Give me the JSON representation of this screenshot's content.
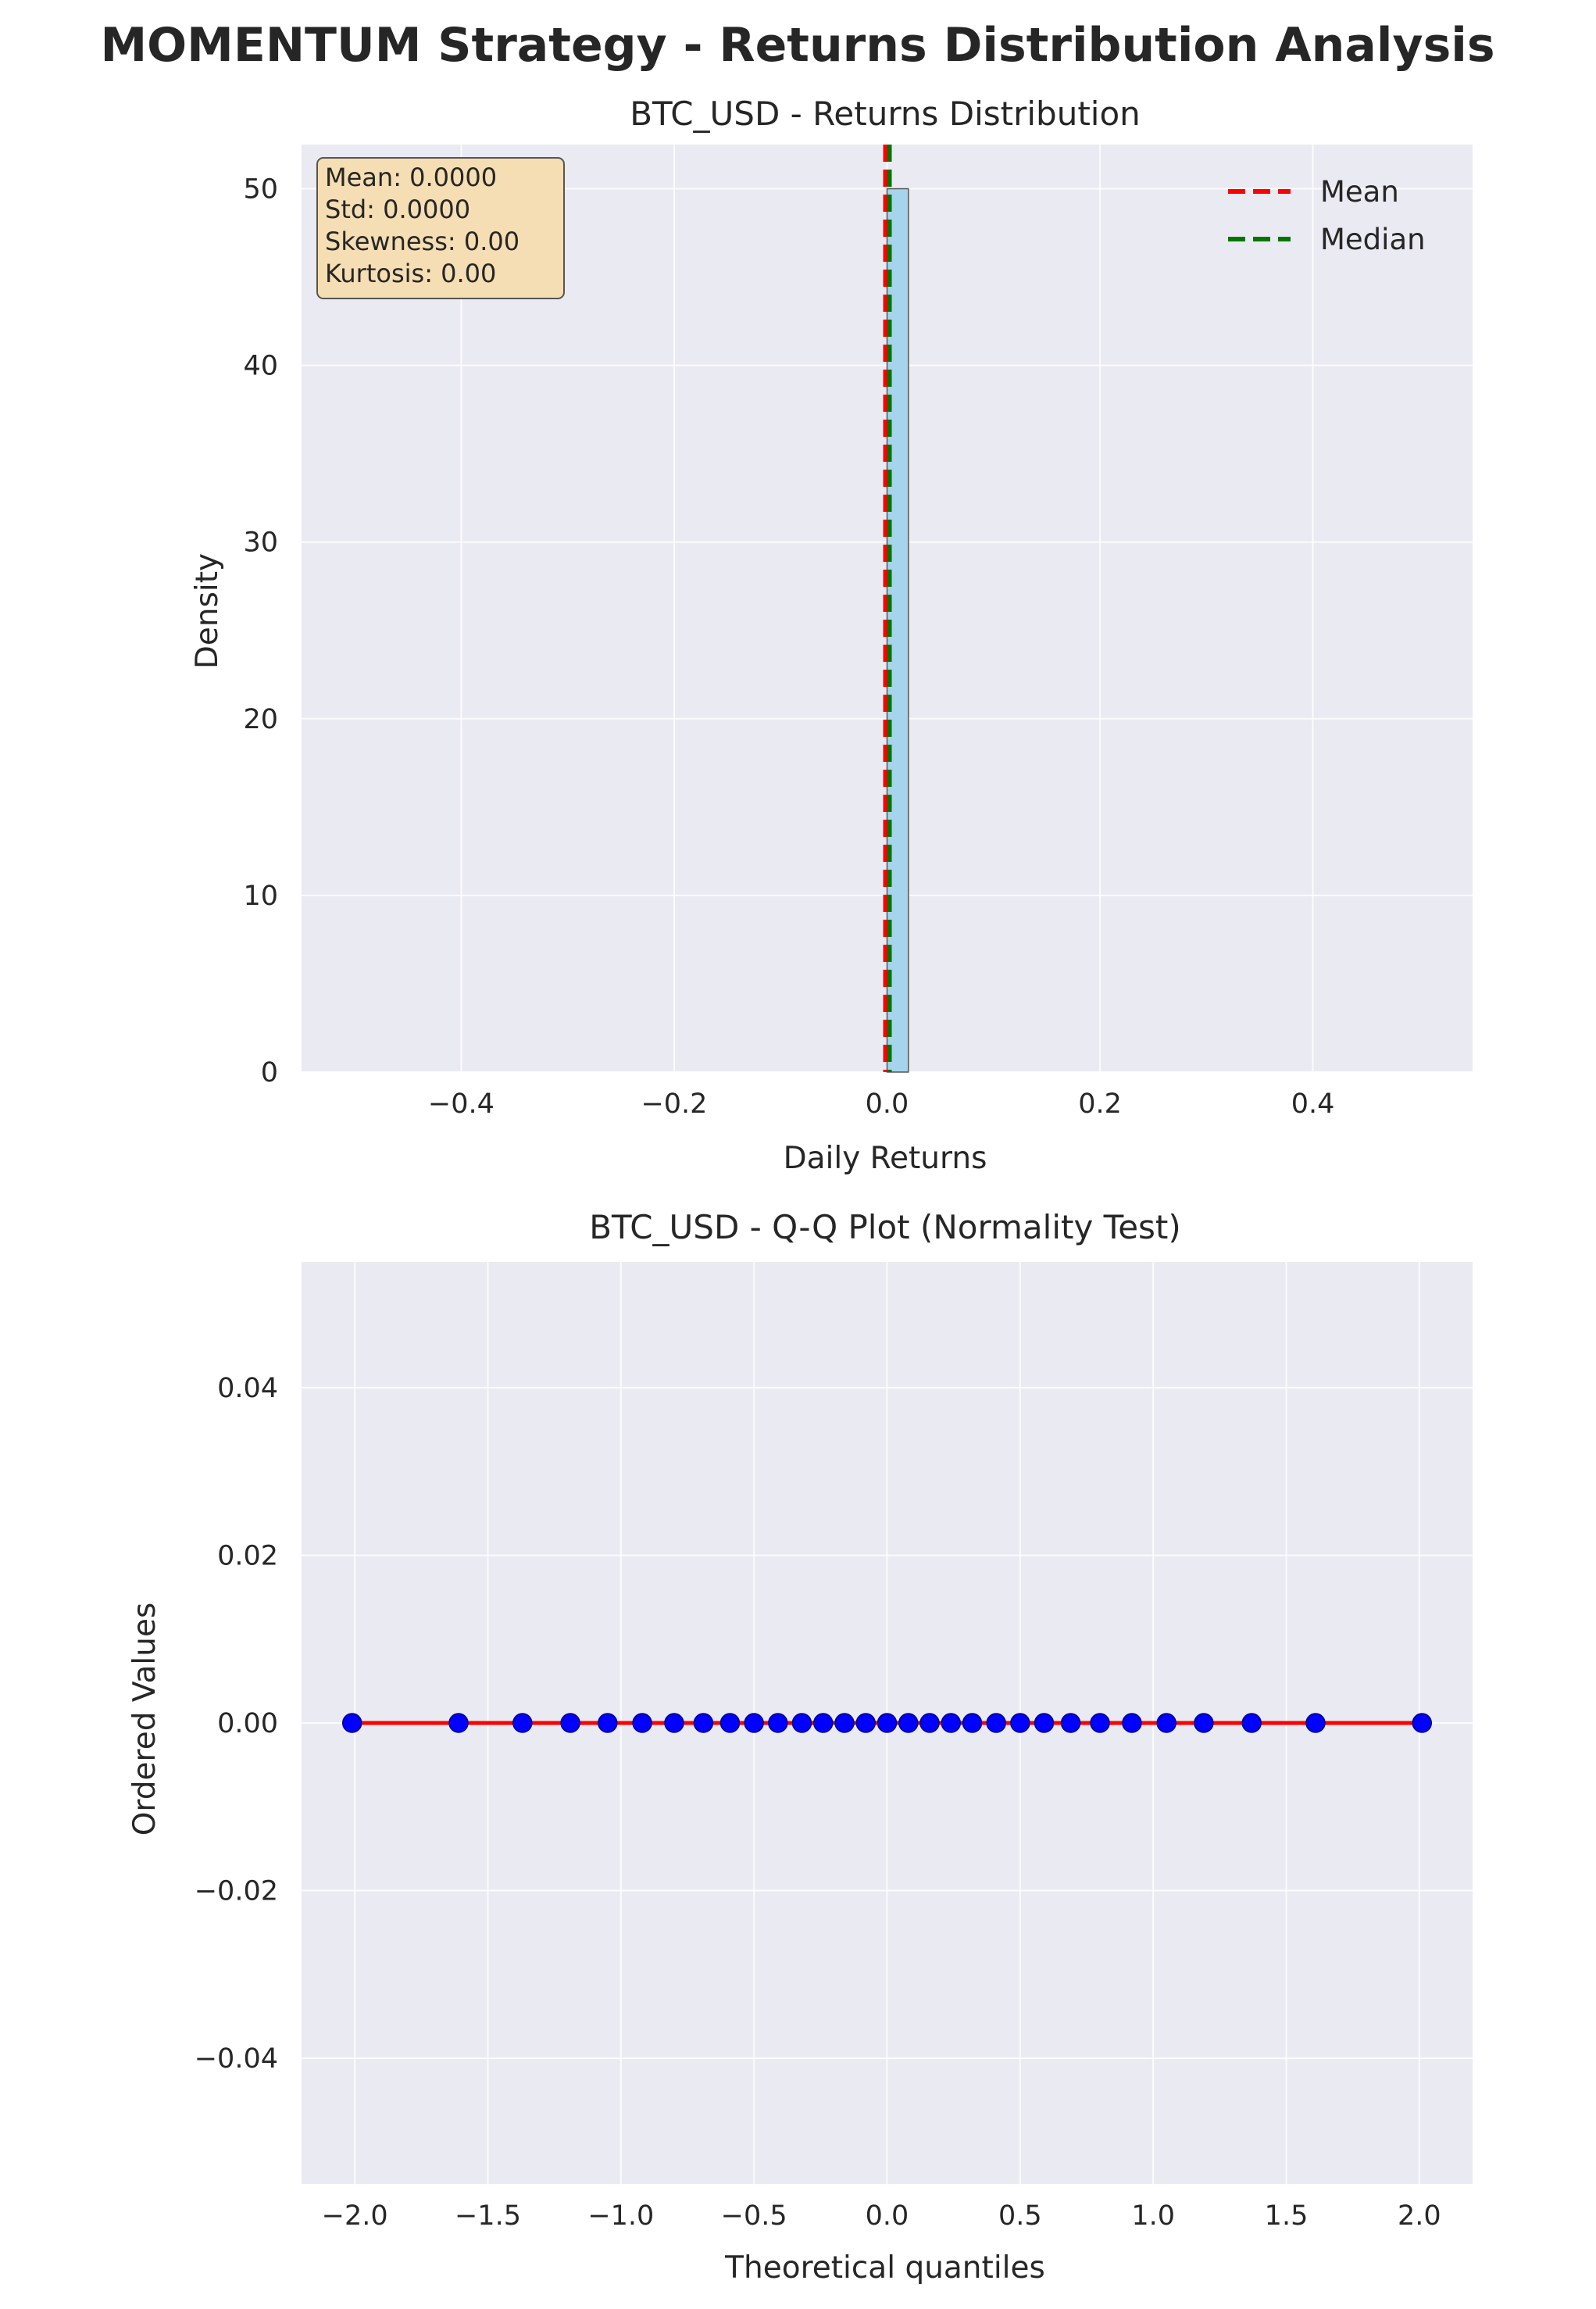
{
  "figure": {
    "suptitle": "MOMENTUM Strategy - Returns Distribution Analysis",
    "colors": {
      "background": "#ffffff",
      "axes_face": "#eaeaf2",
      "grid": "#ffffff",
      "text": "#262626"
    }
  },
  "chart_data": [
    {
      "type": "bar",
      "subtype": "histogram",
      "title": "BTC_USD - Returns Distribution",
      "xlabel": "Daily Returns",
      "ylabel": "Density",
      "xlim": [
        -0.55,
        0.55
      ],
      "ylim": [
        0,
        52.5
      ],
      "xticks": [
        -0.4,
        -0.2,
        0.0,
        0.2,
        0.4
      ],
      "xtick_labels": [
        "−0.4",
        "−0.2",
        "0.0",
        "0.2",
        "0.4"
      ],
      "yticks": [
        0,
        10,
        20,
        30,
        40,
        50
      ],
      "ytick_labels": [
        "0",
        "10",
        "20",
        "30",
        "40",
        "50"
      ],
      "bins": [
        {
          "x0": 0.0,
          "x1": 0.02,
          "density": 50
        }
      ],
      "bar_color": "#a6d4ec",
      "bar_edge": "#555555",
      "lines": [
        {
          "name": "Mean",
          "x": 0.0,
          "color": "#ff0000",
          "style": "dashed"
        },
        {
          "name": "Median",
          "x": 0.0,
          "color": "#007500",
          "style": "dashed"
        }
      ],
      "legend": {
        "placement": "upper-right",
        "entries": [
          {
            "label": "Mean",
            "color": "#ff0000"
          },
          {
            "label": "Median",
            "color": "#007500"
          }
        ]
      },
      "stats_box": {
        "placement": "upper-left",
        "lines": [
          "Mean: 0.0000",
          "Std: 0.0000",
          "Skewness: 0.00",
          "Kurtosis: 0.00"
        ],
        "color": "#f5deb3"
      },
      "grid": true
    },
    {
      "type": "scatter",
      "title": "BTC_USD - Q-Q Plot (Normality Test)",
      "xlabel": "Theoretical quantiles",
      "ylabel": "Ordered Values",
      "xlim": [
        -2.2,
        2.2
      ],
      "ylim": [
        -0.055,
        0.055
      ],
      "xticks": [
        -2.0,
        -1.5,
        -1.0,
        -0.5,
        0.0,
        0.5,
        1.0,
        1.5,
        2.0
      ],
      "xtick_labels": [
        "−2.0",
        "−1.5",
        "−1.0",
        "−0.5",
        "0.0",
        "0.5",
        "1.0",
        "1.5",
        "2.0"
      ],
      "yticks": [
        -0.04,
        -0.02,
        0.0,
        0.02,
        0.04
      ],
      "ytick_labels": [
        "−0.04",
        "−0.02",
        "0.00",
        "0.02",
        "0.04"
      ],
      "points": {
        "x": [
          -2.01,
          -1.61,
          -1.37,
          -1.19,
          -1.05,
          -0.92,
          -0.8,
          -0.69,
          -0.59,
          -0.5,
          -0.41,
          -0.32,
          -0.24,
          -0.16,
          -0.08,
          0.0,
          0.08,
          0.16,
          0.24,
          0.32,
          0.41,
          0.5,
          0.59,
          0.69,
          0.8,
          0.92,
          1.05,
          1.19,
          1.37,
          1.61,
          2.01
        ],
        "y": [
          0,
          0,
          0,
          0,
          0,
          0,
          0,
          0,
          0,
          0,
          0,
          0,
          0,
          0,
          0,
          0,
          0,
          0,
          0,
          0,
          0,
          0,
          0,
          0,
          0,
          0,
          0,
          0,
          0,
          0,
          0
        ],
        "color": "#0000ff"
      },
      "fit_line": {
        "x": [
          -2.01,
          2.01
        ],
        "y": [
          0,
          0
        ],
        "color": "#ff0000"
      },
      "grid": true
    }
  ]
}
